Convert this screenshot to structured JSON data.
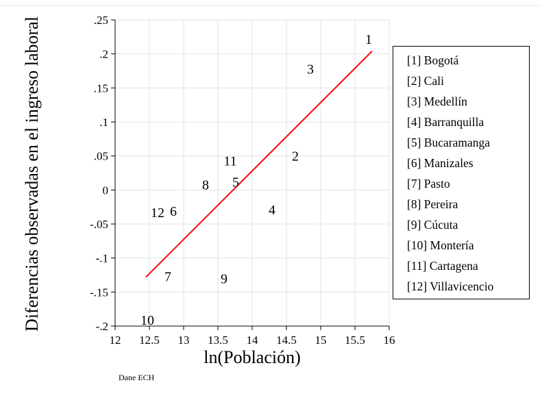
{
  "chart_data": {
    "type": "scatter",
    "title": "",
    "xlabel": "ln(Población)",
    "ylabel": "Diferencias observadas en el ingreso laboral",
    "xlim": [
      12,
      16
    ],
    "ylim": [
      -0.2,
      0.25
    ],
    "x_ticks": [
      12,
      12.5,
      13,
      13.5,
      14,
      14.5,
      15,
      15.5,
      16
    ],
    "x_tick_labels": [
      "12",
      "12.5",
      "13",
      "13.5",
      "14",
      "14.5",
      "15",
      "15.5",
      "16"
    ],
    "y_ticks": [
      -0.2,
      -0.15,
      -0.1,
      -0.05,
      0,
      0.05,
      0.1,
      0.15,
      0.2,
      0.25
    ],
    "y_tick_labels": [
      "-.2",
      "-.15",
      "-.1",
      "-.05",
      "0",
      ".05",
      ".1",
      ".15",
      ".2",
      ".25"
    ],
    "grid": true,
    "points": [
      {
        "label": "1",
        "x": 15.7,
        "y": 0.222
      },
      {
        "label": "2",
        "x": 14.63,
        "y": 0.05
      },
      {
        "label": "3",
        "x": 14.85,
        "y": 0.178
      },
      {
        "label": "4",
        "x": 14.29,
        "y": -0.029
      },
      {
        "label": "5",
        "x": 13.76,
        "y": 0.012
      },
      {
        "label": "6",
        "x": 12.85,
        "y": -0.031
      },
      {
        "label": "7",
        "x": 12.77,
        "y": -0.127
      },
      {
        "label": "8",
        "x": 13.32,
        "y": 0.008
      },
      {
        "label": "9",
        "x": 13.59,
        "y": -0.13
      },
      {
        "label": "10",
        "x": 12.47,
        "y": -0.191
      },
      {
        "label": "11",
        "x": 13.68,
        "y": 0.043
      },
      {
        "label": "12",
        "x": 12.62,
        "y": -0.033
      }
    ],
    "fit_line": {
      "x": [
        12.45,
        15.75
      ],
      "y": [
        -0.128,
        0.204
      ],
      "color": "#ff0000"
    },
    "legend_position": "right",
    "legend": [
      "[1] Bogotá",
      "[2] Cali",
      "[3] Medellín",
      "[4] Barranquilla",
      "[5] Bucaramanga",
      "[6] Manizales",
      "[7] Pasto",
      "[8] Pereira",
      "[9] Cúcuta",
      "[10] Montería",
      "[11] Cartagena",
      "[12] Villavicencio"
    ]
  },
  "source": "Dane ECH"
}
